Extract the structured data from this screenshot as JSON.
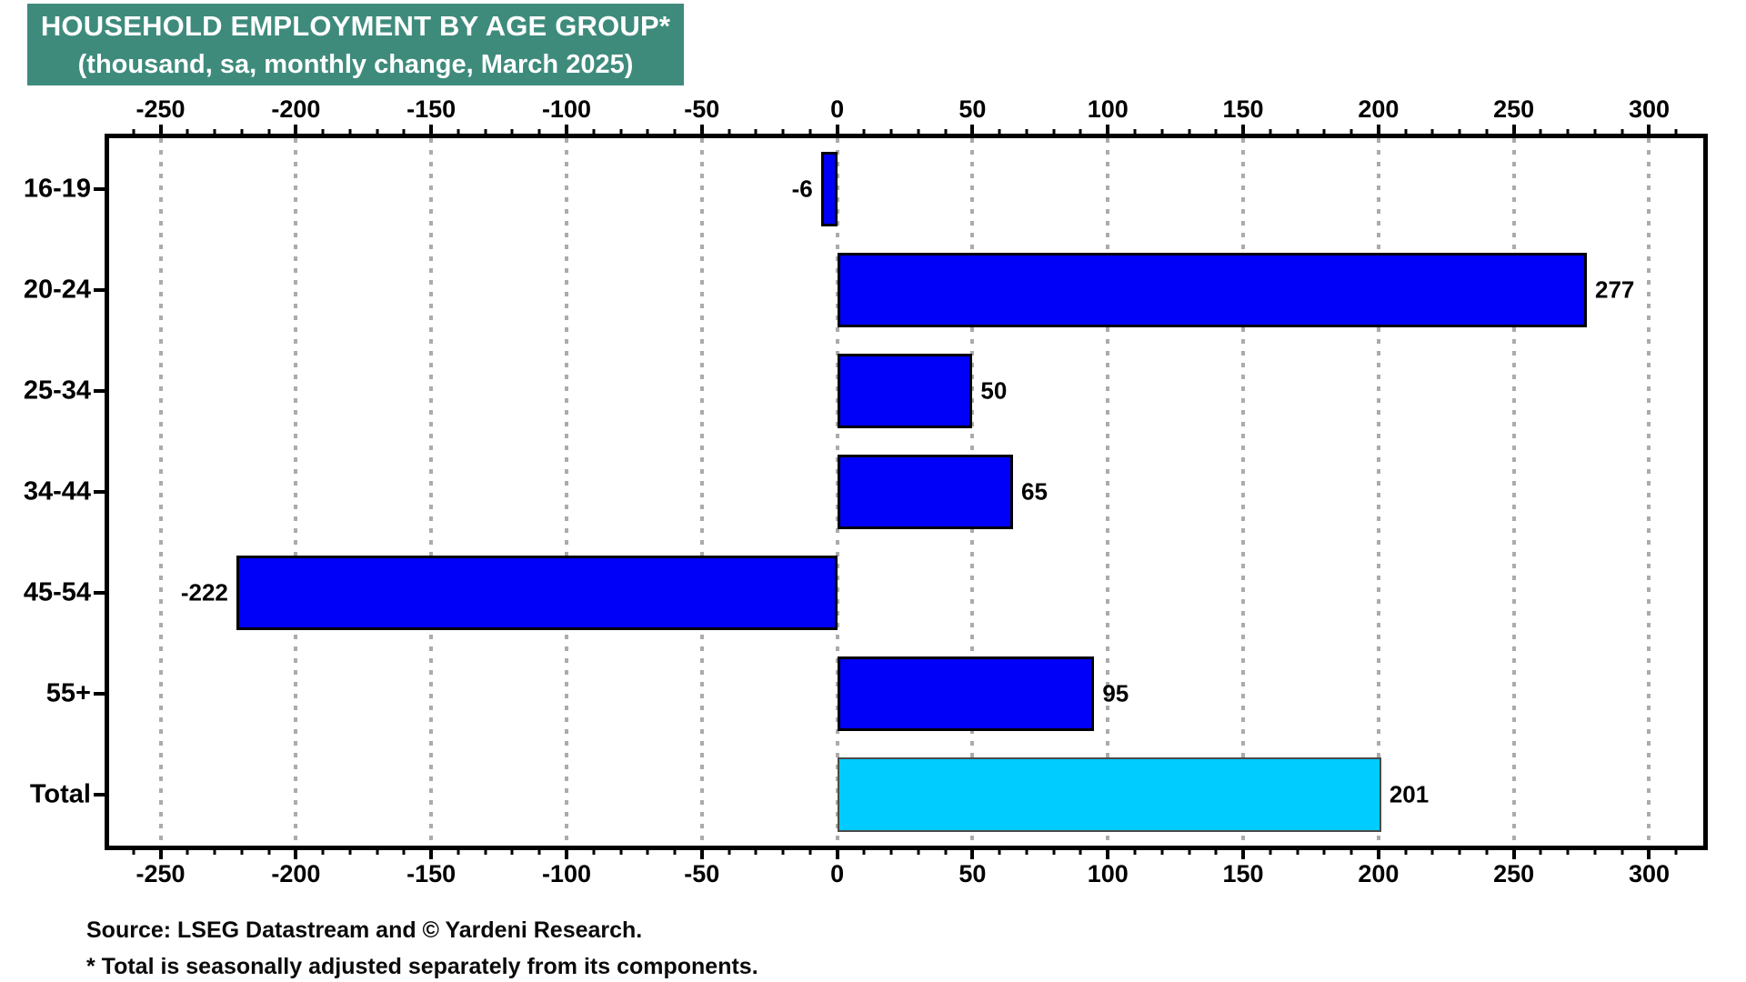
{
  "title": {
    "line1": "HOUSEHOLD EMPLOYMENT BY AGE GROUP*",
    "line2": "(thousand, sa, monthly change, March 2025)",
    "bg_color": "#3e8b7c",
    "text_color": "#ffffff"
  },
  "chart_data": {
    "type": "bar",
    "orientation": "horizontal",
    "title": "HOUSEHOLD EMPLOYMENT BY AGE GROUP* (thousand, sa, monthly change, March 2025)",
    "categories": [
      "16-19",
      "20-24",
      "25-34",
      "34-44",
      "45-54",
      "55+",
      "Total"
    ],
    "values": [
      -6,
      277,
      50,
      65,
      -222,
      95,
      201
    ],
    "value_labels": [
      "-6",
      "277",
      "50",
      "65",
      "-222",
      "95",
      "201"
    ],
    "bar_colors": [
      "#0000f8",
      "#0000f8",
      "#0000f8",
      "#0000f8",
      "#0000f8",
      "#0000f8",
      "#00ccff"
    ],
    "xlim": [
      -269,
      320
    ],
    "ticks": [
      -250,
      -200,
      -150,
      -100,
      -50,
      0,
      50,
      100,
      150,
      200,
      250,
      300
    ],
    "tick_labels": [
      "-250",
      "-200",
      "-150",
      "-100",
      "-50",
      "0",
      "50",
      "100",
      "150",
      "200",
      "250",
      "300"
    ],
    "minor_tick_step": 10,
    "grid": "dotted-vertical",
    "legend": "none",
    "colors": {
      "bar_blue": "#0000f8",
      "bar_total_cyan": "#00ccff",
      "grid": "#ababab",
      "axis": "#000000"
    }
  },
  "footer": {
    "line1": "Source: LSEG Datastream and © Yardeni Research.",
    "line2": "* Total is seasonally adjusted separately from its components."
  }
}
